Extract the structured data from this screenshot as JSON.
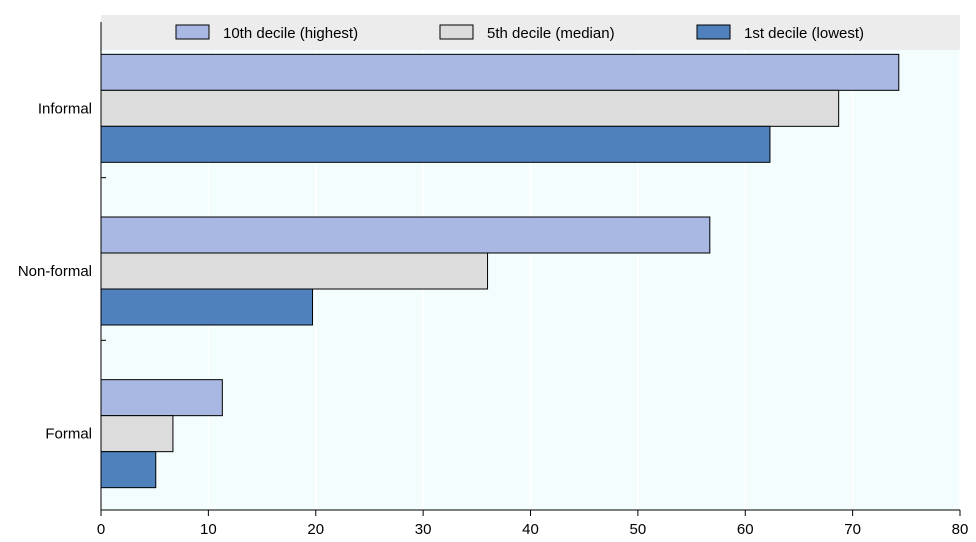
{
  "chart_data": {
    "type": "bar",
    "orientation": "horizontal",
    "categories": [
      "Informal",
      "Non-formal",
      "Formal"
    ],
    "series": [
      {
        "name": "10th decile (highest)",
        "values": [
          74.3,
          56.7,
          11.3
        ],
        "color": "#a9b8e3"
      },
      {
        "name": "5th decile (median)",
        "values": [
          68.7,
          36.0,
          6.7
        ],
        "color": "#dcdcdc"
      },
      {
        "name": "1st decile (lowest)",
        "values": [
          62.3,
          19.7,
          5.1
        ],
        "color": "#4f81bd"
      }
    ],
    "x_ticks": [
      "0",
      "10",
      "20",
      "30",
      "40",
      "50",
      "60",
      "70",
      "80"
    ],
    "xlim": [
      0,
      80
    ],
    "grid": true,
    "legend_position": "top",
    "colors": {
      "plot_background": "#f3fdfe",
      "legend_background": "#ececec",
      "gridline": "#ffffff"
    }
  }
}
